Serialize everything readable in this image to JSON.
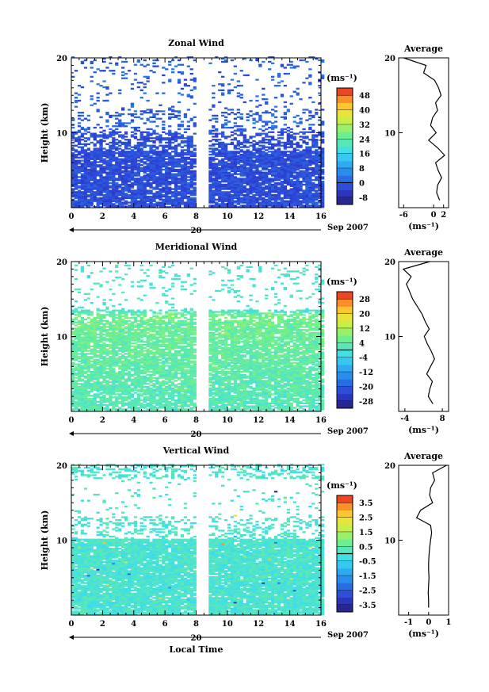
{
  "figure": {
    "xlabel": "Local Time",
    "date_label": "20",
    "month_label": "Sep 2007",
    "unit_label": "(ms⁻¹)",
    "avg_title": "Average",
    "ylabel": "Height (km)"
  },
  "chart_data": [
    {
      "type": "heatmap",
      "title": "Zonal Wind",
      "xlabel": "Local Time",
      "ylabel": "Height (km)",
      "xlim": [
        0,
        16
      ],
      "ylim": [
        0,
        20
      ],
      "xticks": [
        0,
        2,
        4,
        6,
        8,
        10,
        12,
        14,
        16
      ],
      "yticks": [
        10,
        20
      ],
      "data_gap_hours": [
        8.0,
        8.8
      ],
      "colorbar": {
        "label": "(ms⁻¹)",
        "ticks": [
          "48",
          "40",
          "32",
          "24",
          "16",
          "8",
          "0",
          "-8"
        ],
        "range": [
          -12,
          52
        ]
      },
      "average": {
        "title": "Average",
        "xlabel": "(ms⁻¹)",
        "xlim": [
          -7,
          3
        ],
        "xticks": [
          "-6",
          "0",
          "2"
        ],
        "yticks": [
          10,
          20
        ],
        "height_km": [
          1,
          2,
          3,
          4,
          5,
          6,
          7,
          8,
          9,
          10,
          11,
          12,
          13,
          14,
          15,
          16,
          17,
          18,
          19,
          20
        ],
        "values": [
          1.2,
          0.6,
          0.8,
          1.6,
          0.9,
          0.4,
          2.2,
          0.8,
          -1.0,
          0.5,
          -0.6,
          -0.2,
          0.8,
          0.4,
          1.5,
          1.0,
          0.2,
          -2.0,
          -1.5,
          -6.0
        ]
      }
    },
    {
      "type": "heatmap",
      "title": "Meridional Wind",
      "xlabel": "Local Time",
      "ylabel": "Height (km)",
      "xlim": [
        0,
        16
      ],
      "ylim": [
        0,
        20
      ],
      "xticks": [
        0,
        2,
        4,
        6,
        8,
        10,
        12,
        14,
        16
      ],
      "yticks": [
        10,
        20
      ],
      "data_gap_hours": [
        8.0,
        8.8
      ],
      "colorbar": {
        "label": "(ms⁻¹)",
        "ticks": [
          "28",
          "20",
          "12",
          "4",
          "-4",
          "-12",
          "-20",
          "-28"
        ],
        "range": [
          -32,
          32
        ]
      },
      "average": {
        "title": "Average",
        "xlabel": "(ms⁻¹)",
        "xlim": [
          -6,
          10
        ],
        "xticks": [
          "-4",
          "8"
        ],
        "yticks": [
          10,
          20
        ],
        "height_km": [
          1,
          2,
          3,
          4,
          5,
          6,
          7,
          8,
          9,
          10,
          11,
          12,
          13,
          14,
          15,
          16,
          17,
          18,
          19,
          20
        ],
        "values": [
          5.0,
          3.5,
          4.0,
          4.8,
          3.0,
          4.2,
          5.5,
          4.5,
          3.2,
          2.2,
          3.8,
          2.5,
          1.5,
          0.0,
          -1.5,
          -2.5,
          -3.5,
          -2.0,
          -4.5,
          4.0
        ]
      }
    },
    {
      "type": "heatmap",
      "title": "Vertical Wind",
      "xlabel": "Local Time",
      "ylabel": "Height (km)",
      "xlim": [
        0,
        16
      ],
      "ylim": [
        0,
        20
      ],
      "xticks": [
        0,
        2,
        4,
        6,
        8,
        10,
        12,
        14,
        16
      ],
      "yticks": [
        10,
        20
      ],
      "data_gap_hours": [
        8.0,
        8.8
      ],
      "colorbar": {
        "label": "(ms⁻¹)",
        "ticks": [
          "3.5",
          "2.5",
          "1.5",
          "0.5",
          "-0.5",
          "-1.5",
          "-2.5",
          "-3.5"
        ],
        "range": [
          -4,
          4
        ]
      },
      "average": {
        "title": "Average",
        "xlabel": "(ms⁻¹)",
        "xlim": [
          -1.5,
          1
        ],
        "xticks": [
          "-1",
          "0",
          "1"
        ],
        "yticks": [
          10,
          20
        ],
        "height_km": [
          1,
          2,
          3,
          4,
          5,
          6,
          7,
          8,
          9,
          10,
          11,
          12,
          13,
          14,
          15,
          16,
          17,
          18,
          19,
          20
        ],
        "values": [
          0.0,
          0.0,
          -0.02,
          0.0,
          0.02,
          0.0,
          0.0,
          0.02,
          0.05,
          0.1,
          0.15,
          0.1,
          -0.6,
          -0.4,
          0.2,
          0.05,
          0.1,
          0.3,
          0.2,
          0.9
        ]
      }
    }
  ]
}
